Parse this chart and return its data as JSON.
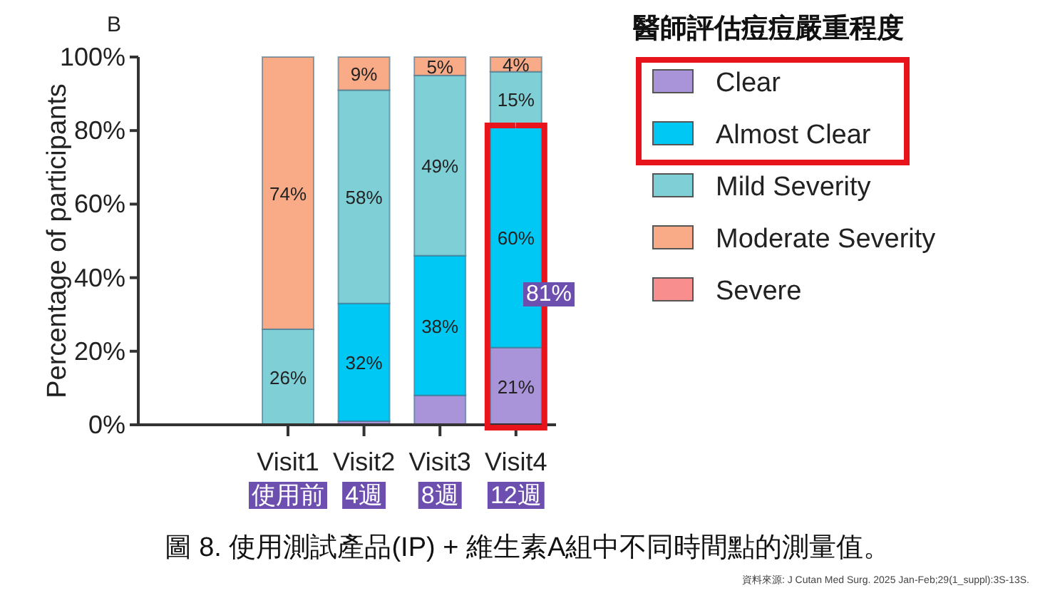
{
  "chart_data": {
    "type": "bar",
    "stacked": true,
    "ylabel": "Percentage of participants",
    "legend_title": "醫師評估痘痘嚴重程度",
    "legend": "right",
    "categories": [
      "Visit1\n使用前",
      "Visit2\n4週",
      "Visit3\n8週",
      "Visit4\n12週"
    ],
    "ylim": [
      0,
      100
    ],
    "yticks": [
      {
        "value": 0,
        "label": "0%"
      },
      {
        "value": 20,
        "label": "20%"
      },
      {
        "value": 40,
        "label": "40%"
      },
      {
        "value": 60,
        "label": "60%"
      },
      {
        "value": 80,
        "label": "80%"
      },
      {
        "value": 100,
        "label": "100%"
      }
    ],
    "series": [
      {
        "name": "Clear",
        "color": "#a993d9",
        "values": [
          0,
          1,
          8,
          21
        ],
        "value_labels": [
          null,
          null,
          null,
          "21%"
        ]
      },
      {
        "name": "Almost Clear",
        "color": "#00c8f5",
        "values": [
          0,
          32,
          38,
          60
        ],
        "value_labels": [
          null,
          "32%",
          "38%",
          "60%"
        ]
      },
      {
        "name": "Mild Severity",
        "color": "#7ecfd6",
        "values": [
          26,
          58,
          49,
          15
        ],
        "value_labels": [
          "26%",
          "58%",
          "49%",
          "15%"
        ]
      },
      {
        "name": "Moderate Severity",
        "color": "#f9ab88",
        "values": [
          74,
          9,
          5,
          4
        ],
        "value_labels": [
          "74%",
          "9%",
          "5%",
          "4%"
        ]
      },
      {
        "name": "Severe",
        "color": "#f98e8e",
        "values": [
          0,
          0,
          0,
          0
        ],
        "value_labels": [
          null,
          null,
          null,
          null
        ]
      }
    ],
    "annotations": [
      "B",
      "81%",
      "圖 8. 使用測試產品(IP) + 維生素A組中不同時間點的測量值。",
      "資料來源: J Cutan Med Surg. 2025 Jan-Feb;29(1_suppl):3S-13S."
    ],
    "grid": false
  }
}
